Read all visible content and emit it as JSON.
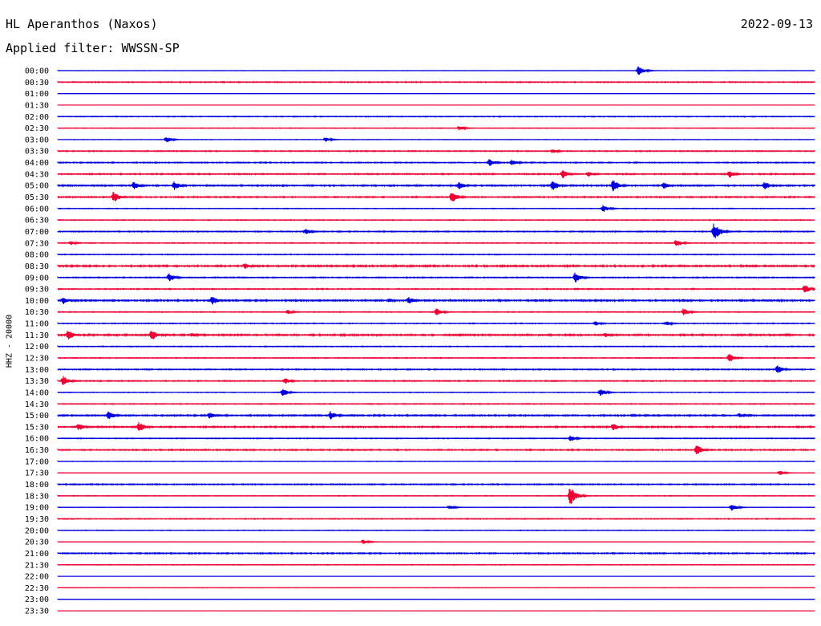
{
  "header": {
    "station": "HL Aperanthos (Naxos)",
    "date": "2022-09-13",
    "filter": "Applied filter: WWSSN-SP"
  },
  "channel_label": "HHZ - 20000",
  "colors": {
    "blue": "#0000dd",
    "red": "#ee0033"
  },
  "chart_data": {
    "type": "line",
    "title": "HL Aperanthos (Naxos)",
    "subtitle": "Applied filter: WWSSN-SP",
    "ylabel": "HHZ - 20000",
    "row_labels": [
      "00:00",
      "00:30",
      "01:00",
      "01:30",
      "02:00",
      "02:30",
      "03:00",
      "03:30",
      "04:00",
      "04:30",
      "05:00",
      "05:30",
      "06:00",
      "06:30",
      "07:00",
      "07:30",
      "08:00",
      "08:30",
      "09:00",
      "09:30",
      "10:00",
      "10:30",
      "11:00",
      "11:30",
      "12:00",
      "12:30",
      "13:00",
      "13:30",
      "14:00",
      "14:30",
      "15:00",
      "15:30",
      "16:00",
      "16:30",
      "17:00",
      "17:30",
      "18:00",
      "18:30",
      "19:00",
      "19:30",
      "20:00",
      "20:30",
      "21:00",
      "21:30",
      "22:00",
      "22:30",
      "23:00",
      "23:30"
    ],
    "row_colors": [
      "blue",
      "red"
    ],
    "trace_duration_minutes": 30,
    "noise_levels": [
      0.2,
      0.6,
      0.1,
      0.1,
      0.5,
      0.4,
      0.3,
      0.6,
      0.6,
      0.7,
      0.8,
      0.7,
      0.4,
      0.5,
      0.6,
      0.5,
      0.5,
      0.9,
      0.6,
      0.6,
      0.9,
      0.5,
      0.5,
      0.9,
      0.5,
      0.5,
      0.6,
      0.6,
      0.4,
      0.5,
      0.8,
      0.8,
      0.5,
      0.7,
      0.3,
      0.2,
      0.6,
      0.4,
      0.3,
      0.5,
      0.4,
      0.2,
      0.7,
      0.4,
      0.1,
      0.3,
      0.2,
      0.1
    ],
    "events": [
      {
        "row": 0,
        "minute": 23.0,
        "amplitude": 6
      },
      {
        "row": 5,
        "minute": 15.9,
        "amplitude": 3
      },
      {
        "row": 6,
        "minute": 4.3,
        "amplitude": 4
      },
      {
        "row": 6,
        "minute": 10.6,
        "amplitude": 3
      },
      {
        "row": 7,
        "minute": 19.6,
        "amplitude": 3
      },
      {
        "row": 8,
        "minute": 17.1,
        "amplitude": 5
      },
      {
        "row": 8,
        "minute": 18.0,
        "amplitude": 4
      },
      {
        "row": 9,
        "minute": 20.0,
        "amplitude": 6
      },
      {
        "row": 9,
        "minute": 21.0,
        "amplitude": 4
      },
      {
        "row": 9,
        "minute": 26.6,
        "amplitude": 5
      },
      {
        "row": 10,
        "minute": 3.0,
        "amplitude": 5
      },
      {
        "row": 10,
        "minute": 4.6,
        "amplitude": 6
      },
      {
        "row": 10,
        "minute": 15.9,
        "amplitude": 5
      },
      {
        "row": 10,
        "minute": 19.6,
        "amplitude": 7
      },
      {
        "row": 10,
        "minute": 22.0,
        "amplitude": 8
      },
      {
        "row": 10,
        "minute": 24.0,
        "amplitude": 5
      },
      {
        "row": 10,
        "minute": 28.0,
        "amplitude": 6
      },
      {
        "row": 11,
        "minute": 2.2,
        "amplitude": 7
      },
      {
        "row": 11,
        "minute": 15.6,
        "amplitude": 8
      },
      {
        "row": 12,
        "minute": 21.6,
        "amplitude": 5
      },
      {
        "row": 14,
        "minute": 9.8,
        "amplitude": 4
      },
      {
        "row": 14,
        "minute": 26.0,
        "amplitude": 12
      },
      {
        "row": 15,
        "minute": 0.5,
        "amplitude": 3
      },
      {
        "row": 15,
        "minute": 24.5,
        "amplitude": 5
      },
      {
        "row": 17,
        "minute": 7.4,
        "amplitude": 4
      },
      {
        "row": 18,
        "minute": 4.4,
        "amplitude": 6
      },
      {
        "row": 18,
        "minute": 20.5,
        "amplitude": 7
      },
      {
        "row": 19,
        "minute": 29.6,
        "amplitude": 6
      },
      {
        "row": 20,
        "minute": 0.2,
        "amplitude": 5
      },
      {
        "row": 20,
        "minute": 6.1,
        "amplitude": 6
      },
      {
        "row": 20,
        "minute": 13.1,
        "amplitude": 3
      },
      {
        "row": 20,
        "minute": 13.9,
        "amplitude": 5
      },
      {
        "row": 21,
        "minute": 9.1,
        "amplitude": 3
      },
      {
        "row": 21,
        "minute": 15.0,
        "amplitude": 5
      },
      {
        "row": 21,
        "minute": 24.8,
        "amplitude": 5
      },
      {
        "row": 22,
        "minute": 21.3,
        "amplitude": 3
      },
      {
        "row": 22,
        "minute": 24.1,
        "amplitude": 3
      },
      {
        "row": 23,
        "minute": 0.4,
        "amplitude": 7
      },
      {
        "row": 23,
        "minute": 3.7,
        "amplitude": 8
      },
      {
        "row": 23,
        "minute": 5.3,
        "amplitude": 3
      },
      {
        "row": 23,
        "minute": 21.7,
        "amplitude": 3
      },
      {
        "row": 25,
        "minute": 26.6,
        "amplitude": 6
      },
      {
        "row": 26,
        "minute": 28.5,
        "amplitude": 6
      },
      {
        "row": 27,
        "minute": 0.2,
        "amplitude": 7
      },
      {
        "row": 27,
        "minute": 9.0,
        "amplitude": 4
      },
      {
        "row": 28,
        "minute": 8.9,
        "amplitude": 5
      },
      {
        "row": 28,
        "minute": 21.5,
        "amplitude": 5
      },
      {
        "row": 30,
        "minute": 2.0,
        "amplitude": 6
      },
      {
        "row": 30,
        "minute": 6.0,
        "amplitude": 5
      },
      {
        "row": 30,
        "minute": 10.8,
        "amplitude": 6
      },
      {
        "row": 30,
        "minute": 27.0,
        "amplitude": 3
      },
      {
        "row": 31,
        "minute": 0.8,
        "amplitude": 5
      },
      {
        "row": 31,
        "minute": 3.2,
        "amplitude": 7
      },
      {
        "row": 31,
        "minute": 22.0,
        "amplitude": 5
      },
      {
        "row": 32,
        "minute": 20.3,
        "amplitude": 4
      },
      {
        "row": 33,
        "minute": 25.3,
        "amplitude": 7
      },
      {
        "row": 35,
        "minute": 28.6,
        "amplitude": 3
      },
      {
        "row": 37,
        "minute": 20.3,
        "amplitude": 13
      },
      {
        "row": 38,
        "minute": 15.5,
        "amplitude": 3
      },
      {
        "row": 38,
        "minute": 26.7,
        "amplitude": 5
      },
      {
        "row": 41,
        "minute": 12.1,
        "amplitude": 3
      }
    ]
  }
}
